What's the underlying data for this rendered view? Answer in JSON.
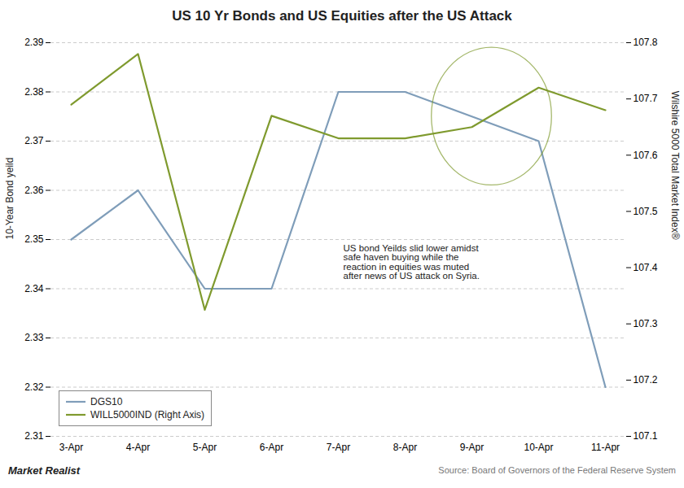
{
  "chart_data": {
    "type": "line",
    "title": "US 10 Yr Bonds and US Equities after the US Attack",
    "categories": [
      "3-Apr",
      "4-Apr",
      "5-Apr",
      "6-Apr",
      "7-Apr",
      "8-Apr",
      "9-Apr",
      "10-Apr",
      "11-Apr"
    ],
    "series": [
      {
        "name": "DGS10",
        "color": "#7f9db9",
        "values": [
          2.35,
          2.36,
          2.34,
          2.34,
          2.38,
          2.38,
          2.375,
          2.37,
          2.32
        ]
      },
      {
        "name": "WILL5000IND (Right Axis)",
        "color": "#7f9a2e",
        "axis": "y2",
        "values": [
          107.69,
          107.78,
          107.325,
          107.67,
          107.63,
          107.63,
          107.65,
          107.72,
          107.68
        ]
      }
    ],
    "ylabel": "10-Year Bond yeild",
    "y2label": "Wilshire 5000 Total Market Index®",
    "ylim": [
      2.31,
      2.39
    ],
    "yticks": [
      2.31,
      2.32,
      2.33,
      2.34,
      2.35,
      2.36,
      2.37,
      2.38,
      2.39
    ],
    "y2lim": [
      107.1,
      107.8
    ],
    "y2ticks": [
      107.1,
      107.2,
      107.3,
      107.4,
      107.5,
      107.6,
      107.7,
      107.8
    ],
    "grid": true,
    "legend": "lower left",
    "annotations": [
      "US bond Yeilds slid lower amidst\nsafe haven buying while the\nreaction in equities was muted\nafter news of US attack on Syria."
    ],
    "watermark": "Market Realist",
    "source": "Source: Board of Governors of the Federal Reserve System"
  }
}
